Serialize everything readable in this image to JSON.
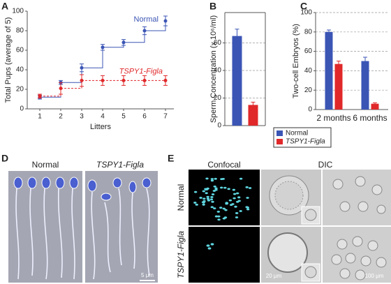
{
  "chart_data": [
    {
      "type": "line",
      "label": "A",
      "step": true,
      "grid": false,
      "xlabel": "Litters",
      "ylabel": "Total Pups (average of 5)",
      "x": [
        1,
        2,
        3,
        4,
        5,
        6,
        7
      ],
      "xlim": [
        0.4,
        7.4
      ],
      "xticks": [
        1,
        2,
        3,
        4,
        5,
        6,
        7
      ],
      "ylim": [
        0,
        100
      ],
      "yticks": [
        0,
        20,
        40,
        60,
        80,
        100
      ],
      "series": [
        {
          "name": "Normal",
          "color": "#3b55b5",
          "dashed": false,
          "values": [
            12,
            27,
            42,
            63,
            68,
            80,
            90
          ],
          "errors": [
            2,
            2,
            4,
            3,
            3,
            4,
            5
          ]
        },
        {
          "name": "TSPY1-Figla",
          "color": "#e0282a",
          "dashed": true,
          "values": [
            13,
            21,
            29,
            29,
            29,
            29,
            29
          ],
          "errors": [
            2,
            6,
            6,
            5,
            5,
            5,
            5
          ]
        }
      ]
    },
    {
      "type": "bar",
      "label": "B",
      "grid": true,
      "ylabel": "Sperm Concentration (x 10⁶/ml)",
      "categories": [
        null
      ],
      "ylim": [
        0,
        82
      ],
      "yticks": [
        0,
        20,
        40,
        60
      ],
      "series": [
        {
          "name": "Normal",
          "color": "#3b55b5",
          "values": [
            65
          ],
          "errors": [
            5
          ]
        },
        {
          "name": "TSPY1-Figla",
          "color": "#e0282a",
          "values": [
            15
          ],
          "errors": [
            2
          ]
        }
      ]
    },
    {
      "type": "bar",
      "label": "C",
      "grid": true,
      "legend": "bottom-left",
      "ylabel": "Two-cell Embryos (%)",
      "categories": [
        "2 months",
        "6 months"
      ],
      "ylim": [
        0,
        100
      ],
      "yticks": [
        0,
        20,
        40,
        60,
        80,
        100
      ],
      "series": [
        {
          "name": "Normal",
          "color": "#3b55b5",
          "values": [
            80,
            50
          ],
          "errors": [
            2,
            4
          ]
        },
        {
          "name": "TSPY1-Figla",
          "color": "#e0282a",
          "values": [
            47,
            6
          ],
          "errors": [
            3,
            1
          ]
        }
      ]
    }
  ],
  "panels": {
    "D": {
      "label": "D",
      "columns": [
        "Normal",
        "TSPY1-Figla"
      ],
      "scale_bar": "5 μm"
    },
    "E": {
      "label": "E",
      "columns": [
        "Confocal",
        "DIC"
      ],
      "rows": [
        "Normal",
        "TSPY1-Figla"
      ],
      "scale_bars": [
        "20 μm",
        "100 μm"
      ]
    }
  }
}
